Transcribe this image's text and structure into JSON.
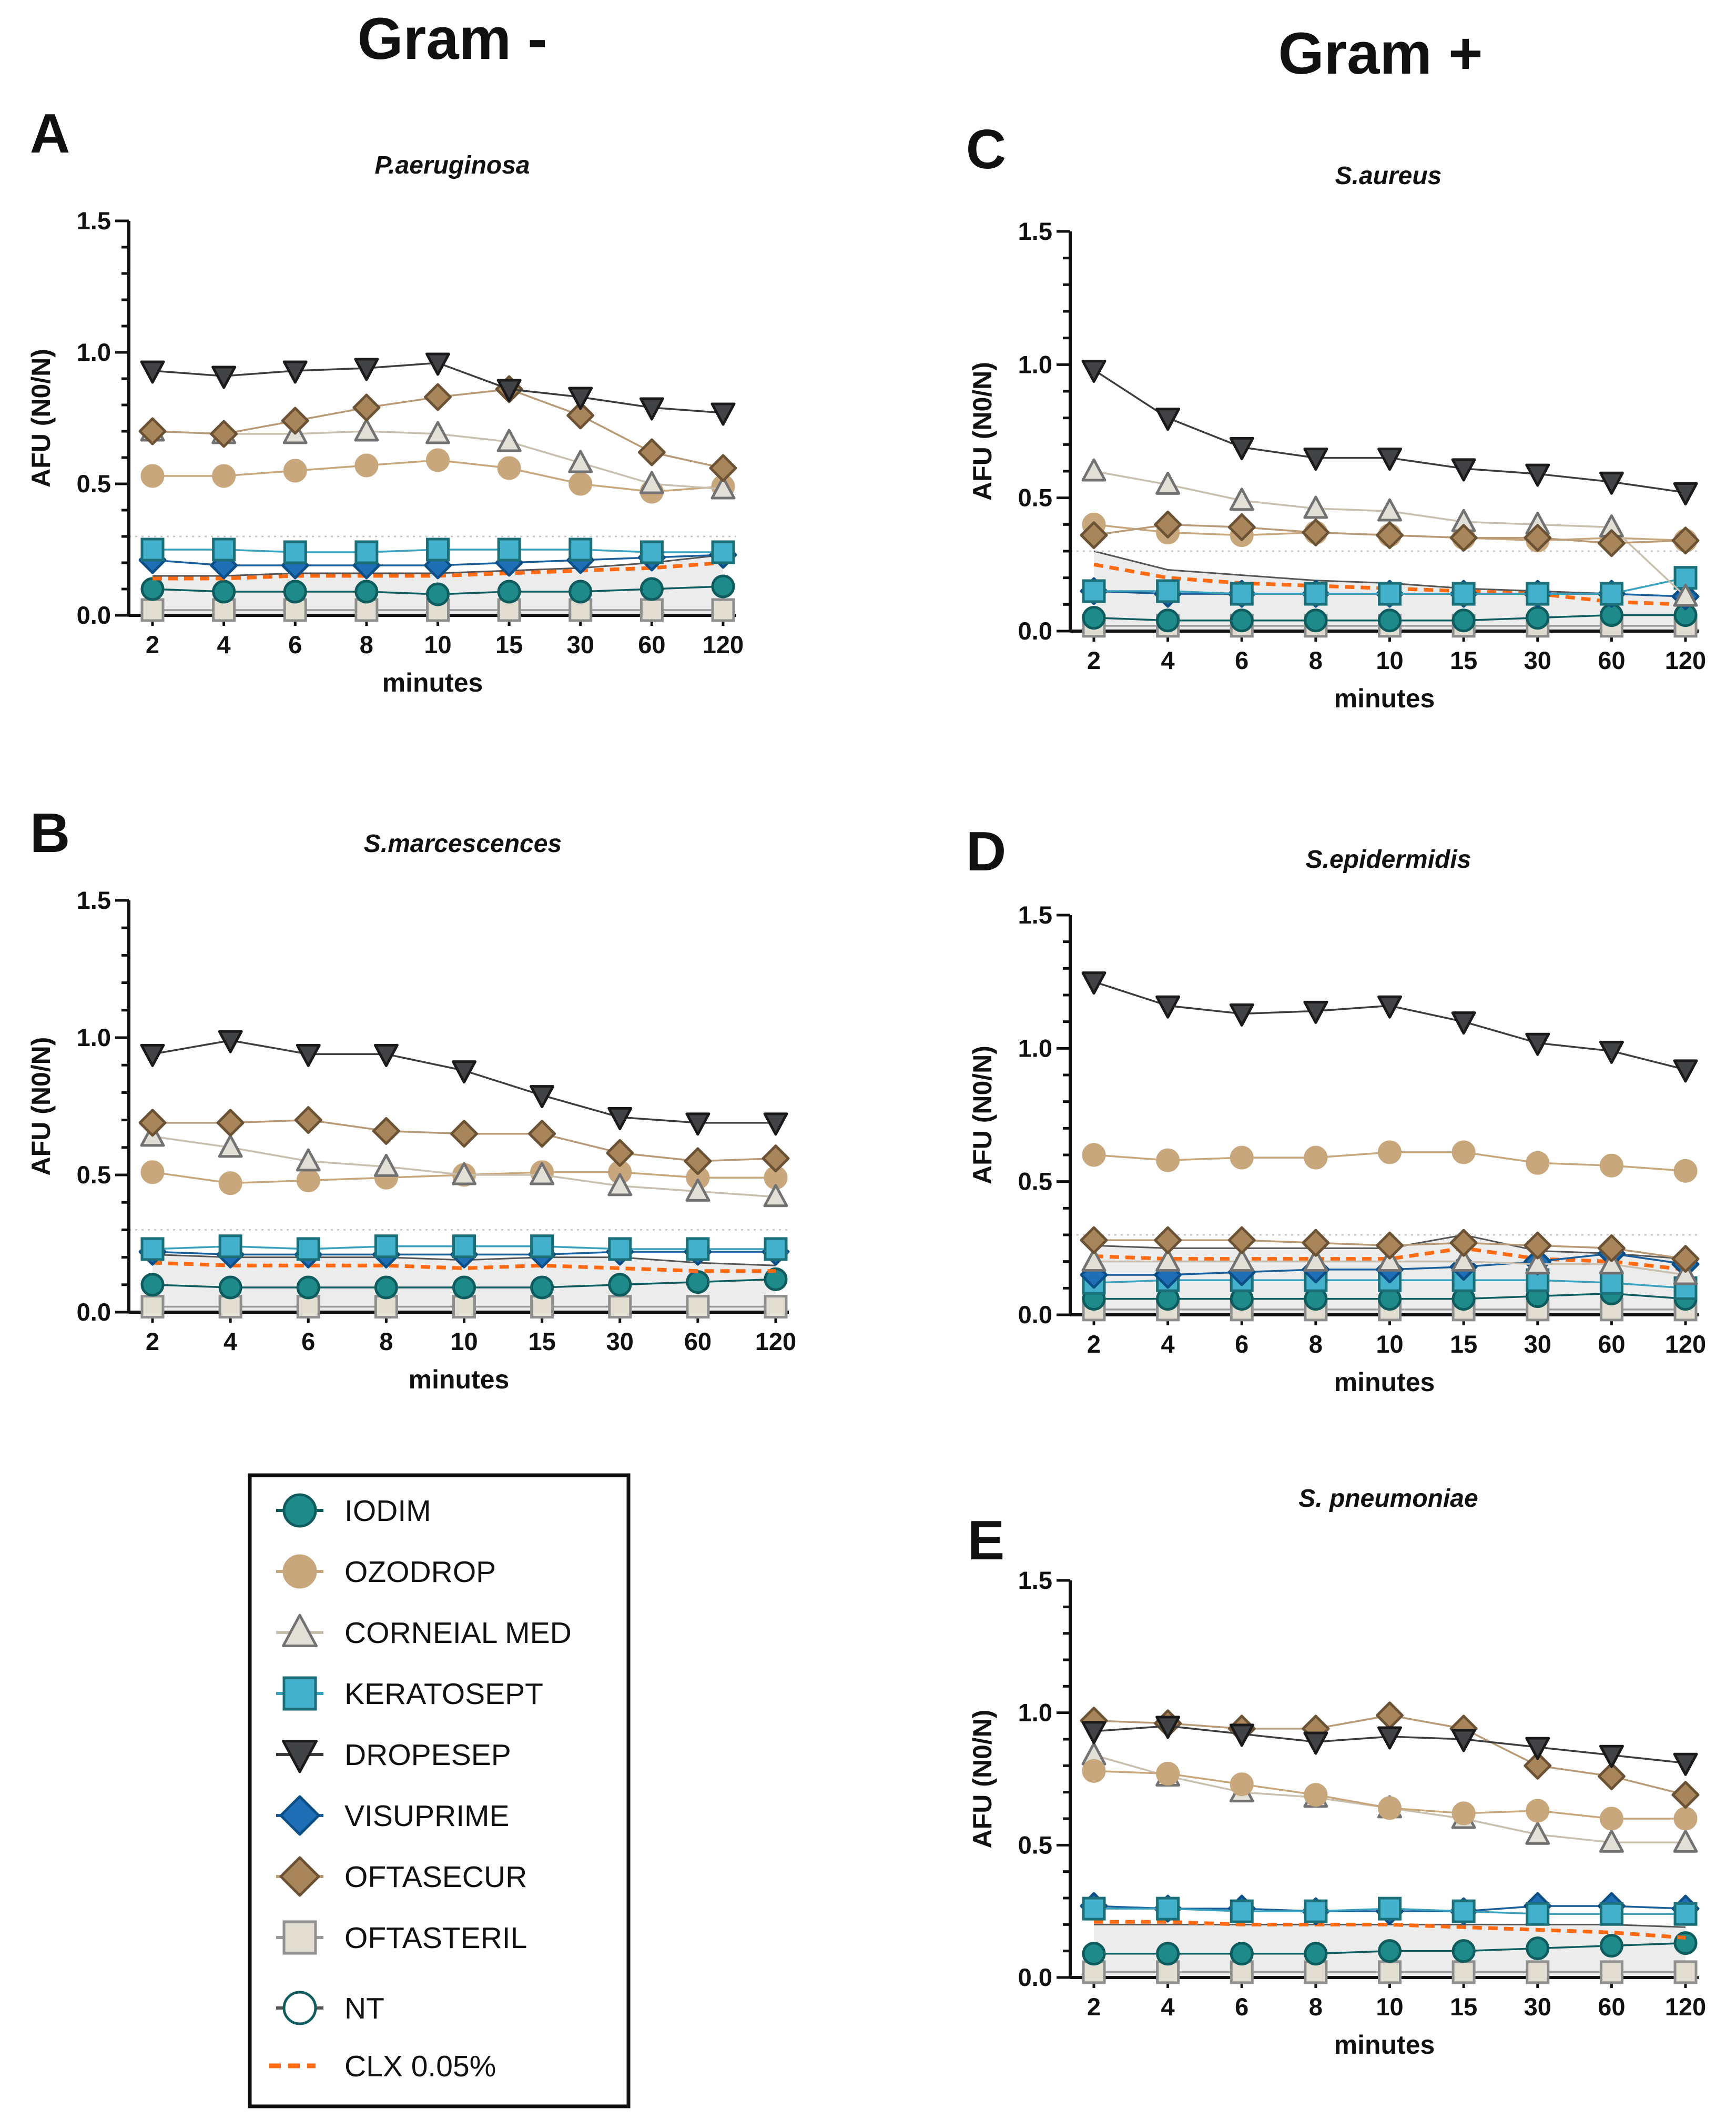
{
  "headers": {
    "left": "Gram -",
    "right": "Gram +"
  },
  "series_defs": [
    {
      "key": "iodim",
      "name": "IODIM",
      "marker": "circle",
      "fill": "#1f8a8a",
      "stroke": "#0f5c5f",
      "line": "#0f5c5f"
    },
    {
      "key": "ozodrop",
      "name": "OZODROP",
      "marker": "circle",
      "fill": "#c8a77c",
      "stroke": "#c8a77c",
      "line": "#c8a77c"
    },
    {
      "key": "corneial",
      "name": "CORNEIAL MED",
      "marker": "triangle",
      "fill": "#e2dfd6",
      "stroke": "#727272",
      "line": "#c9bfae"
    },
    {
      "key": "keratosept",
      "name": "KERATOSEPT",
      "marker": "square",
      "fill": "#43b0cc",
      "stroke": "#1b6f78",
      "line": "#3aa2bf"
    },
    {
      "key": "dropesep",
      "name": "DROPESEP",
      "marker": "tridown",
      "fill": "#414346",
      "stroke": "#1a1a1a",
      "line": "#3d3d3f"
    },
    {
      "key": "visuprime",
      "name": "VISUPRIME",
      "marker": "diamond",
      "fill": "#1f6fb7",
      "stroke": "#0c4e86",
      "line": "#1a5f9c"
    },
    {
      "key": "oftasecur",
      "name": "OFTASECUR",
      "marker": "diamond",
      "fill": "#a8855a",
      "stroke": "#6b5234",
      "line": "#b89a76"
    },
    {
      "key": "oftasteril",
      "name": "OFTASTERIL",
      "marker": "square",
      "fill": "#e1ddd0",
      "stroke": "#8f8f8f",
      "line": "#9a9a9a"
    },
    {
      "key": "nt",
      "name": "NT",
      "marker": "opencircle",
      "fill": "#ffffff",
      "stroke": "#0f5c5f",
      "line": "#555555"
    },
    {
      "key": "clx",
      "name": "CLX 0.05%",
      "marker": "dash",
      "fill": "none",
      "stroke": "#ff6a13",
      "line": "#ff6a13"
    }
  ],
  "chart_data": [
    {
      "panel": "A",
      "title": "P.aeruginosa",
      "type": "line",
      "categories": [
        "2",
        "4",
        "6",
        "8",
        "10",
        "15",
        "30",
        "60",
        "120"
      ],
      "xlabel": "minutes",
      "ylabel": "AFU (N0/N)",
      "ylim": [
        0,
        1.5
      ],
      "yticks": [
        "0.0",
        "0.5",
        "1.0",
        "1.5"
      ],
      "ref_line": 0.3,
      "band_top": [
        0.15,
        0.15,
        0.16,
        0.16,
        0.16,
        0.17,
        0.18,
        0.2,
        0.23
      ],
      "series": [
        {
          "key": "oftasteril",
          "values": [
            0.02,
            0.02,
            0.02,
            0.02,
            0.02,
            0.02,
            0.02,
            0.02,
            0.02
          ]
        },
        {
          "key": "iodim",
          "values": [
            0.1,
            0.09,
            0.09,
            0.09,
            0.08,
            0.09,
            0.09,
            0.1,
            0.11
          ]
        },
        {
          "key": "clx",
          "values": [
            0.14,
            0.14,
            0.15,
            0.15,
            0.15,
            0.16,
            0.17,
            0.18,
            0.2
          ]
        },
        {
          "key": "visuprime",
          "values": [
            0.21,
            0.19,
            0.19,
            0.19,
            0.19,
            0.2,
            0.21,
            0.22,
            0.23
          ]
        },
        {
          "key": "keratosept",
          "values": [
            0.25,
            0.25,
            0.24,
            0.24,
            0.25,
            0.25,
            0.25,
            0.24,
            0.24
          ]
        },
        {
          "key": "ozodrop",
          "values": [
            0.53,
            0.53,
            0.55,
            0.57,
            0.59,
            0.56,
            0.5,
            0.47,
            0.49
          ]
        },
        {
          "key": "corneial",
          "values": [
            0.7,
            0.69,
            0.69,
            0.7,
            0.69,
            0.66,
            0.58,
            0.5,
            0.48
          ]
        },
        {
          "key": "oftasecur",
          "values": [
            0.7,
            0.69,
            0.74,
            0.79,
            0.83,
            0.86,
            0.76,
            0.62,
            0.56
          ]
        },
        {
          "key": "dropesep",
          "values": [
            0.93,
            0.91,
            0.93,
            0.94,
            0.96,
            0.86,
            0.83,
            0.79,
            0.77
          ]
        }
      ]
    },
    {
      "panel": "B",
      "title": "S.marcescences",
      "type": "line",
      "categories": [
        "2",
        "4",
        "6",
        "8",
        "10",
        "15",
        "30",
        "60",
        "120"
      ],
      "xlabel": "minutes",
      "ylabel": "AFU (N0/N)",
      "ylim": [
        0,
        1.5
      ],
      "yticks": [
        "0.0",
        "0.5",
        "1.0",
        "1.5"
      ],
      "ref_line": 0.3,
      "band_top": [
        0.21,
        0.2,
        0.2,
        0.2,
        0.19,
        0.2,
        0.2,
        0.18,
        0.17
      ],
      "series": [
        {
          "key": "oftasteril",
          "values": [
            0.02,
            0.02,
            0.02,
            0.02,
            0.02,
            0.02,
            0.02,
            0.02,
            0.02
          ]
        },
        {
          "key": "iodim",
          "values": [
            0.1,
            0.09,
            0.09,
            0.09,
            0.09,
            0.09,
            0.1,
            0.11,
            0.12
          ]
        },
        {
          "key": "clx",
          "values": [
            0.18,
            0.17,
            0.17,
            0.17,
            0.16,
            0.17,
            0.16,
            0.15,
            0.15
          ]
        },
        {
          "key": "visuprime",
          "values": [
            0.22,
            0.21,
            0.21,
            0.21,
            0.21,
            0.21,
            0.22,
            0.22,
            0.22
          ]
        },
        {
          "key": "keratosept",
          "values": [
            0.23,
            0.24,
            0.23,
            0.24,
            0.24,
            0.24,
            0.23,
            0.23,
            0.23
          ]
        },
        {
          "key": "ozodrop",
          "values": [
            0.51,
            0.47,
            0.48,
            0.49,
            0.5,
            0.51,
            0.51,
            0.49,
            0.49
          ]
        },
        {
          "key": "corneial",
          "values": [
            0.64,
            0.6,
            0.55,
            0.53,
            0.5,
            0.5,
            0.46,
            0.44,
            0.42
          ]
        },
        {
          "key": "oftasecur",
          "values": [
            0.69,
            0.69,
            0.7,
            0.66,
            0.65,
            0.65,
            0.58,
            0.55,
            0.56
          ]
        },
        {
          "key": "dropesep",
          "values": [
            0.94,
            0.99,
            0.94,
            0.94,
            0.88,
            0.79,
            0.71,
            0.69,
            0.69
          ]
        }
      ]
    },
    {
      "panel": "C",
      "title": "S.aureus",
      "type": "line",
      "categories": [
        "2",
        "4",
        "6",
        "8",
        "10",
        "15",
        "30",
        "60",
        "120"
      ],
      "xlabel": "minutes",
      "ylabel": "AFU (N0/N)",
      "ylim": [
        0,
        1.5
      ],
      "yticks": [
        "0.0",
        "0.5",
        "1.0",
        "1.5"
      ],
      "ref_line": 0.3,
      "band_top": [
        0.3,
        0.23,
        0.21,
        0.19,
        0.18,
        0.16,
        0.15,
        0.14,
        0.13
      ],
      "series": [
        {
          "key": "oftasteril",
          "values": [
            0.02,
            0.02,
            0.02,
            0.02,
            0.02,
            0.02,
            0.02,
            0.02,
            0.02
          ]
        },
        {
          "key": "iodim",
          "values": [
            0.05,
            0.04,
            0.04,
            0.04,
            0.04,
            0.04,
            0.05,
            0.06,
            0.06
          ]
        },
        {
          "key": "clx",
          "values": [
            0.25,
            0.2,
            0.18,
            0.17,
            0.16,
            0.15,
            0.14,
            0.11,
            0.1
          ]
        },
        {
          "key": "visuprime",
          "values": [
            0.15,
            0.14,
            0.14,
            0.14,
            0.14,
            0.14,
            0.14,
            0.14,
            0.13
          ]
        },
        {
          "key": "keratosept",
          "values": [
            0.15,
            0.15,
            0.14,
            0.14,
            0.14,
            0.14,
            0.14,
            0.14,
            0.2
          ]
        },
        {
          "key": "ozodrop",
          "values": [
            0.4,
            0.37,
            0.36,
            0.37,
            0.36,
            0.35,
            0.34,
            0.35,
            0.34
          ]
        },
        {
          "key": "corneial",
          "values": [
            0.6,
            0.55,
            0.49,
            0.46,
            0.45,
            0.41,
            0.4,
            0.39,
            0.13
          ]
        },
        {
          "key": "oftasecur",
          "values": [
            0.36,
            0.4,
            0.39,
            0.37,
            0.36,
            0.35,
            0.35,
            0.33,
            0.34
          ]
        },
        {
          "key": "dropesep",
          "values": [
            0.98,
            0.8,
            0.69,
            0.65,
            0.65,
            0.61,
            0.59,
            0.56,
            0.52
          ]
        }
      ]
    },
    {
      "panel": "D",
      "title": "S.epidermidis",
      "type": "line",
      "categories": [
        "2",
        "4",
        "6",
        "8",
        "10",
        "15",
        "30",
        "60",
        "120"
      ],
      "xlabel": "minutes",
      "ylabel": "AFU (N0/N)",
      "ylim": [
        0,
        1.5
      ],
      "yticks": [
        "0.0",
        "0.5",
        "1.0",
        "1.5"
      ],
      "ref_line": 0.3,
      "band_top": [
        0.26,
        0.25,
        0.25,
        0.25,
        0.25,
        0.3,
        0.24,
        0.23,
        0.21
      ],
      "series": [
        {
          "key": "oftasteril",
          "values": [
            0.02,
            0.02,
            0.02,
            0.02,
            0.02,
            0.02,
            0.02,
            0.02,
            0.02
          ]
        },
        {
          "key": "iodim",
          "values": [
            0.06,
            0.06,
            0.06,
            0.06,
            0.06,
            0.06,
            0.07,
            0.08,
            0.06
          ]
        },
        {
          "key": "keratosept",
          "values": [
            0.12,
            0.13,
            0.13,
            0.13,
            0.13,
            0.13,
            0.13,
            0.12,
            0.1
          ]
        },
        {
          "key": "clx",
          "values": [
            0.22,
            0.21,
            0.21,
            0.21,
            0.21,
            0.25,
            0.21,
            0.2,
            0.17
          ]
        },
        {
          "key": "visuprime",
          "values": [
            0.15,
            0.15,
            0.16,
            0.17,
            0.17,
            0.18,
            0.2,
            0.23,
            0.19
          ]
        },
        {
          "key": "corneial",
          "values": [
            0.2,
            0.2,
            0.2,
            0.2,
            0.2,
            0.2,
            0.19,
            0.19,
            0.15
          ]
        },
        {
          "key": "oftasecur",
          "values": [
            0.28,
            0.28,
            0.28,
            0.27,
            0.26,
            0.27,
            0.26,
            0.25,
            0.21
          ]
        },
        {
          "key": "ozodrop",
          "values": [
            0.6,
            0.58,
            0.59,
            0.59,
            0.61,
            0.61,
            0.57,
            0.56,
            0.54
          ]
        },
        {
          "key": "dropesep",
          "values": [
            1.25,
            1.16,
            1.13,
            1.14,
            1.16,
            1.1,
            1.02,
            0.99,
            0.92
          ]
        }
      ]
    },
    {
      "panel": "E",
      "title": "S. pneumoniae",
      "type": "line",
      "categories": [
        "2",
        "4",
        "6",
        "8",
        "10",
        "15",
        "30",
        "60",
        "120"
      ],
      "xlabel": "minutes",
      "ylabel": "AFU (N0/N)",
      "ylim": [
        0,
        1.5
      ],
      "yticks": [
        "0.0",
        "0.5",
        "1.0",
        "1.5"
      ],
      "ref_line": null,
      "band_top": [
        0.2,
        0.2,
        0.2,
        0.2,
        0.2,
        0.2,
        0.2,
        0.2,
        0.19
      ],
      "series": [
        {
          "key": "oftasteril",
          "values": [
            0.02,
            0.02,
            0.02,
            0.02,
            0.02,
            0.02,
            0.02,
            0.02,
            0.02
          ]
        },
        {
          "key": "iodim",
          "values": [
            0.09,
            0.09,
            0.09,
            0.09,
            0.1,
            0.1,
            0.11,
            0.12,
            0.13
          ]
        },
        {
          "key": "clx",
          "values": [
            0.21,
            0.21,
            0.2,
            0.2,
            0.2,
            0.19,
            0.18,
            0.17,
            0.15
          ]
        },
        {
          "key": "visuprime",
          "values": [
            0.27,
            0.26,
            0.26,
            0.25,
            0.25,
            0.25,
            0.27,
            0.27,
            0.26
          ]
        },
        {
          "key": "keratosept",
          "values": [
            0.26,
            0.26,
            0.25,
            0.25,
            0.26,
            0.25,
            0.24,
            0.24,
            0.24
          ]
        },
        {
          "key": "corneial",
          "values": [
            0.84,
            0.76,
            0.7,
            0.68,
            0.64,
            0.6,
            0.54,
            0.51,
            0.51
          ]
        },
        {
          "key": "ozodrop",
          "values": [
            0.78,
            0.77,
            0.73,
            0.69,
            0.64,
            0.62,
            0.63,
            0.6,
            0.6
          ]
        },
        {
          "key": "oftasecur",
          "values": [
            0.97,
            0.96,
            0.94,
            0.94,
            0.99,
            0.94,
            0.8,
            0.76,
            0.69
          ]
        },
        {
          "key": "dropesep",
          "values": [
            0.93,
            0.95,
            0.92,
            0.89,
            0.91,
            0.9,
            0.87,
            0.84,
            0.81
          ]
        }
      ]
    }
  ]
}
